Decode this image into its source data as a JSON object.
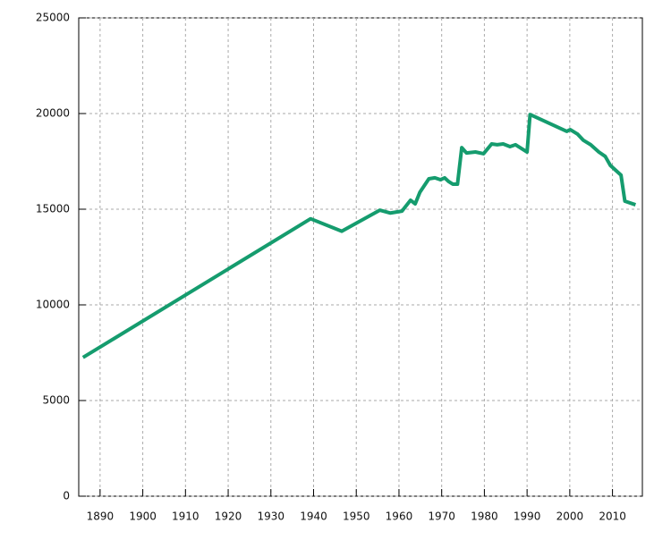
{
  "chart_data": {
    "type": "line",
    "x": [
      1886,
      1939.3,
      1946.6,
      1955.5,
      1958,
      1960.7,
      1962.7,
      1963.8,
      1964.9,
      1967,
      1968.4,
      1969.7,
      1970.7,
      1971.6,
      1972.6,
      1973.7,
      1974.7,
      1975.8,
      1977.9,
      1979.8,
      1981.7,
      1983,
      1984.4,
      1986,
      1987.3,
      1990,
      1990.7,
      1999.3,
      2000.1,
      2001.8,
      2003.2,
      2004.9,
      2006.8,
      2008.3,
      2009.5,
      2012,
      2012.9,
      2015.4
    ],
    "series": [
      {
        "color": "#159c6e",
        "values": [
          7250,
          14500,
          13850,
          14950,
          14800,
          14900,
          15470,
          15280,
          15890,
          16590,
          16640,
          16540,
          16640,
          16450,
          16310,
          16310,
          18220,
          17940,
          17990,
          17900,
          18410,
          18370,
          18410,
          18270,
          18370,
          17990,
          19950,
          19070,
          19160,
          18930,
          18600,
          18370,
          17990,
          17760,
          17290,
          16780,
          15420,
          15230
        ]
      }
    ],
    "xlim": [
      1885,
      2017
    ],
    "xticks": [
      1890,
      1900,
      1910,
      1920,
      1930,
      1940,
      1950,
      1960,
      1970,
      1980,
      1990,
      2000,
      2010
    ],
    "ylim": [
      0,
      25000
    ],
    "yticks": [
      0,
      5000,
      10000,
      15000,
      20000,
      25000
    ],
    "grid": true
  }
}
